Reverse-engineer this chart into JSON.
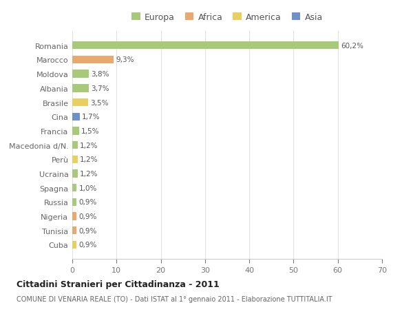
{
  "countries": [
    "Romania",
    "Marocco",
    "Moldova",
    "Albania",
    "Brasile",
    "Cina",
    "Francia",
    "Macedonia d/N.",
    "Perù",
    "Ucraina",
    "Spagna",
    "Russia",
    "Nigeria",
    "Tunisia",
    "Cuba"
  ],
  "values": [
    60.2,
    9.3,
    3.8,
    3.7,
    3.5,
    1.7,
    1.5,
    1.2,
    1.2,
    1.2,
    1.0,
    0.9,
    0.9,
    0.9,
    0.9
  ],
  "labels": [
    "60,2%",
    "9,3%",
    "3,8%",
    "3,7%",
    "3,5%",
    "1,7%",
    "1,5%",
    "1,2%",
    "1,2%",
    "1,2%",
    "1,0%",
    "0,9%",
    "0,9%",
    "0,9%",
    "0,9%"
  ],
  "colors": [
    "#a8c87a",
    "#e8a870",
    "#a8c87a",
    "#a8c87a",
    "#e8d060",
    "#7090c8",
    "#a8c87a",
    "#a8c87a",
    "#e8d060",
    "#a8c87a",
    "#a8c87a",
    "#a8c87a",
    "#e8a870",
    "#e8a870",
    "#e8d060"
  ],
  "legend_labels": [
    "Europa",
    "Africa",
    "America",
    "Asia"
  ],
  "legend_colors": [
    "#a8c87a",
    "#e8a870",
    "#e8d060",
    "#7090c8"
  ],
  "title": "Cittadini Stranieri per Cittadinanza - 2011",
  "subtitle": "COMUNE DI VENARIA REALE (TO) - Dati ISTAT al 1° gennaio 2011 - Elaborazione TUTTITALIA.IT",
  "xlim": [
    0,
    70
  ],
  "xticks": [
    0,
    10,
    20,
    30,
    40,
    50,
    60,
    70
  ],
  "background_color": "#ffffff",
  "grid_color": "#e0e0e0"
}
